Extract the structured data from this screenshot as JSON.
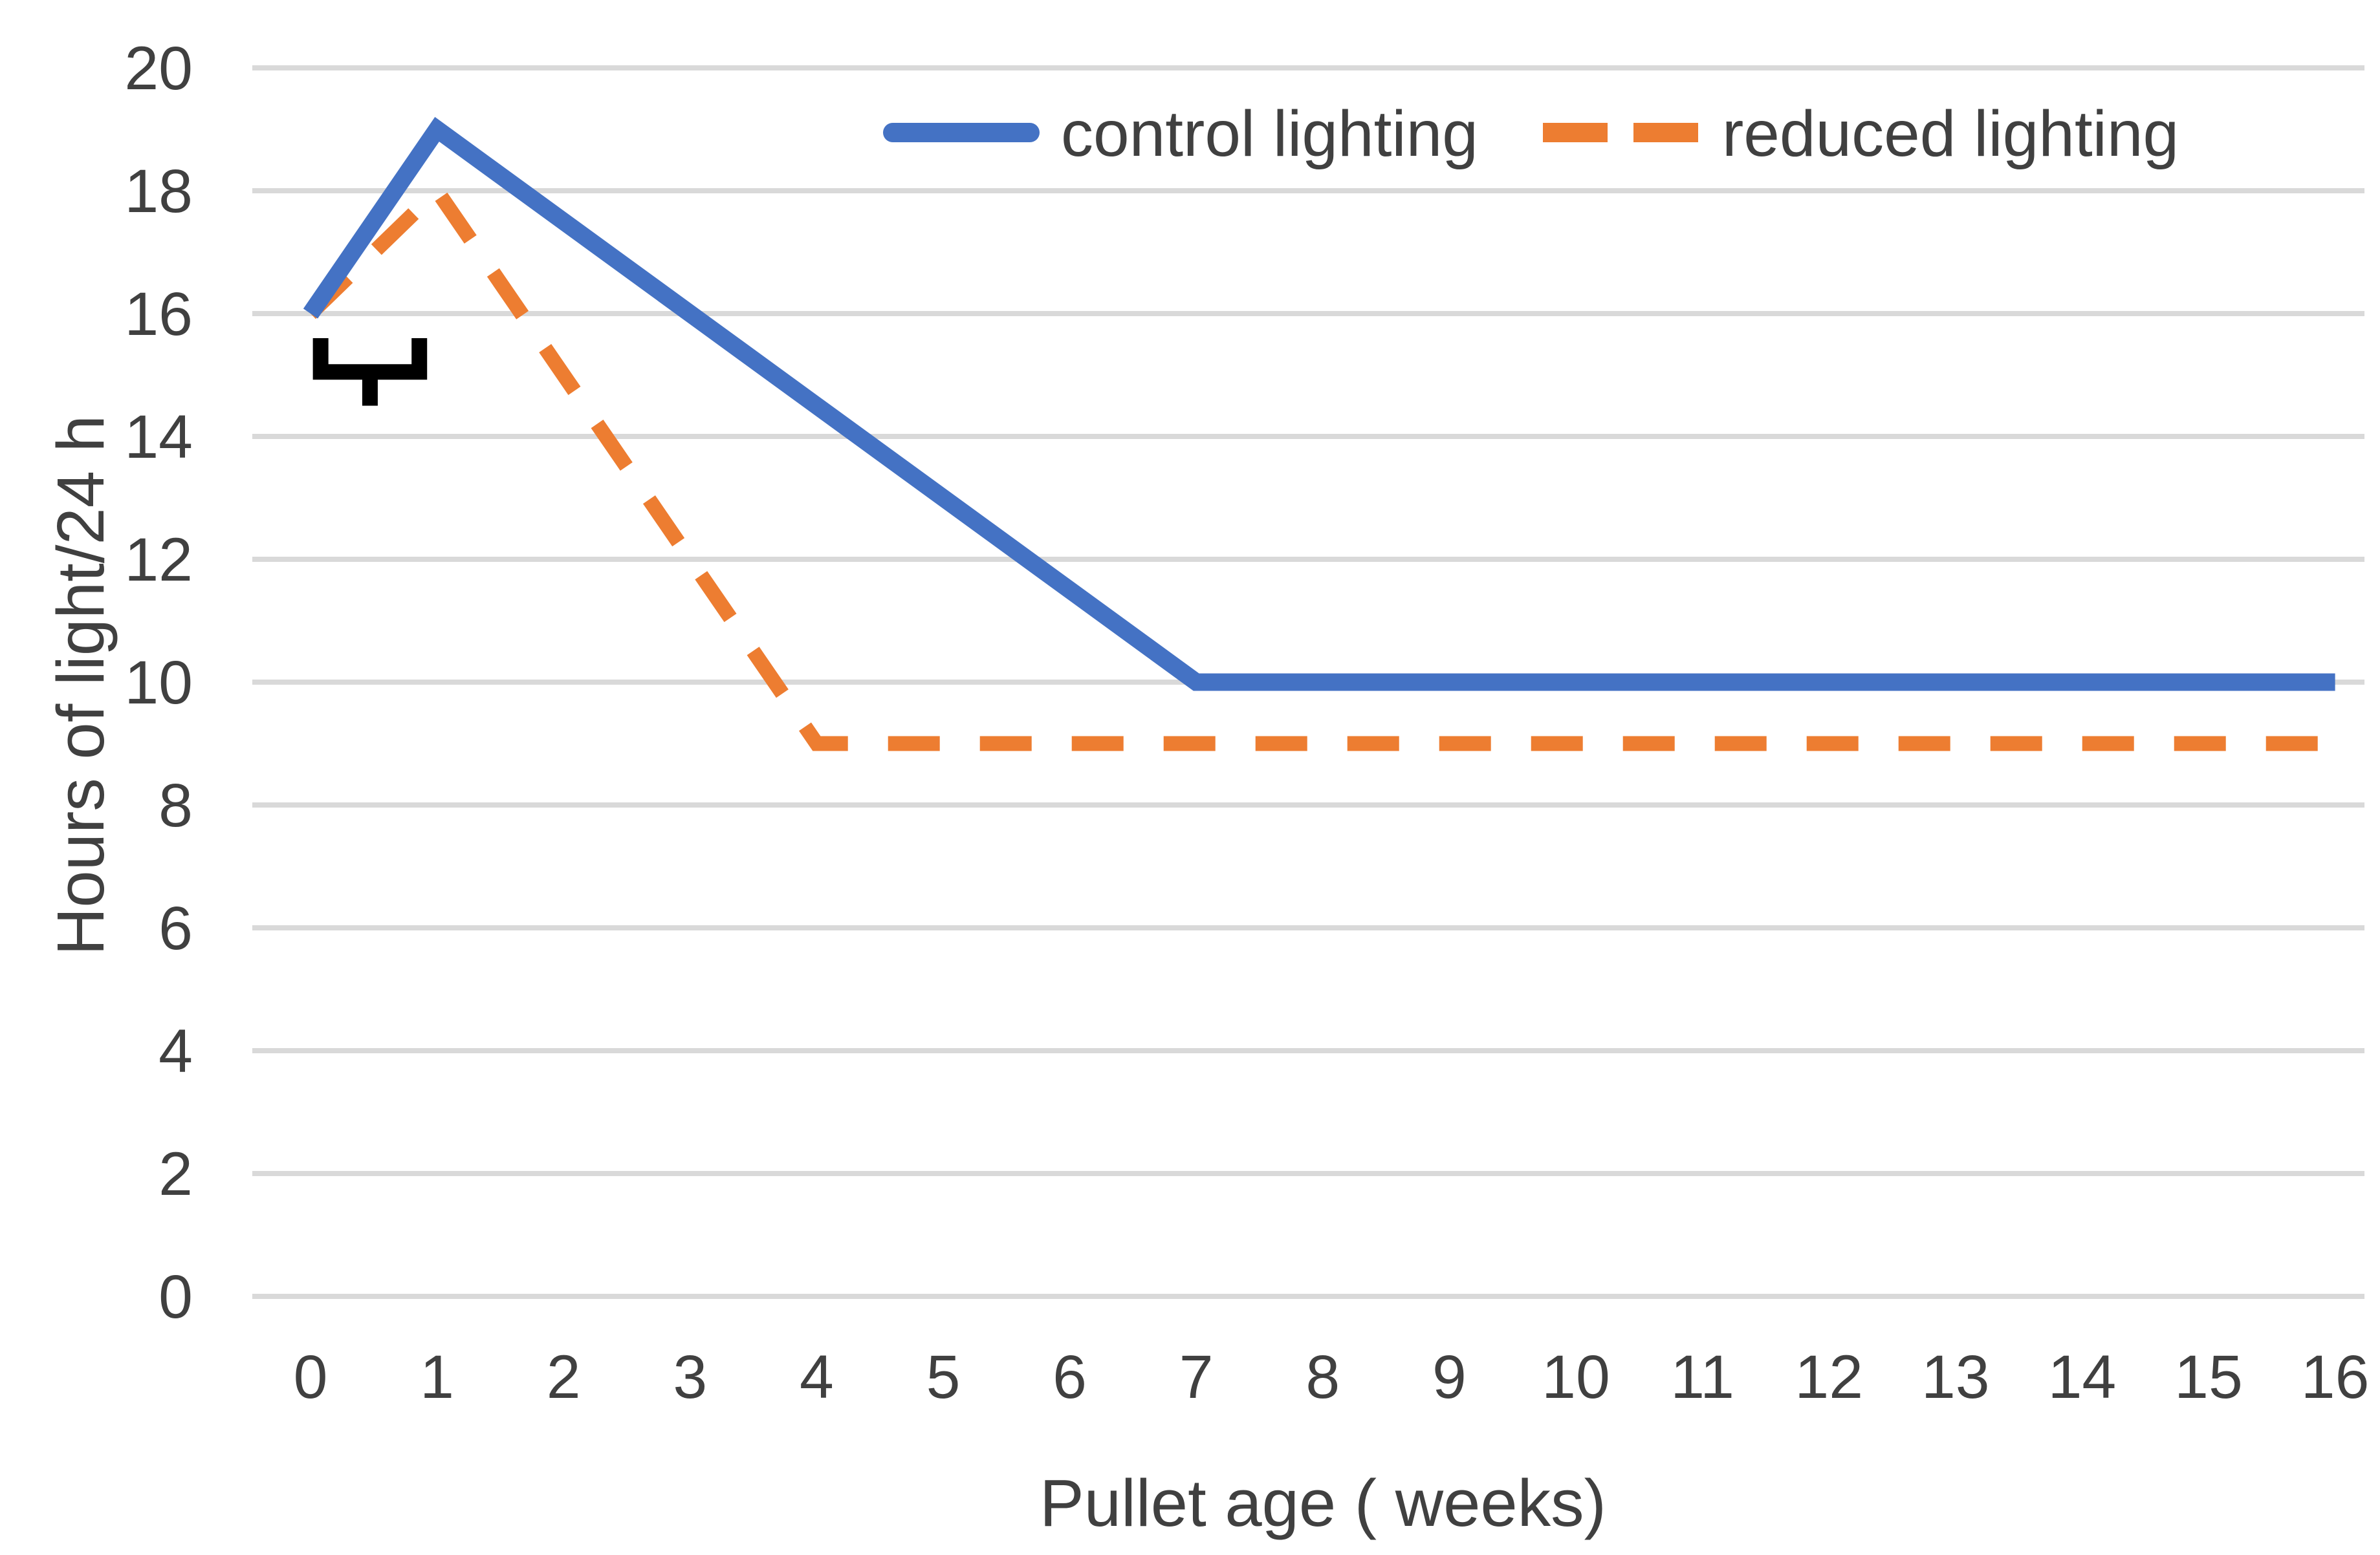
{
  "chart_data": {
    "type": "line",
    "title": "",
    "xlabel": "Pullet age ( weeks)",
    "ylabel": "Hours of light/24 h",
    "xlim": [
      0,
      16
    ],
    "ylim": [
      0,
      20
    ],
    "x_ticks": [
      0,
      1,
      2,
      3,
      4,
      5,
      6,
      7,
      8,
      9,
      10,
      11,
      12,
      13,
      14,
      15,
      16
    ],
    "y_ticks": [
      0,
      2,
      4,
      6,
      8,
      10,
      12,
      14,
      16,
      18,
      20
    ],
    "grid": "horizontal-only",
    "grid_color": "#D9D9D9",
    "axis_text_color": "#404040",
    "background_color": "#FFFFFF",
    "legend_position": "top-center",
    "series": [
      {
        "name": "control lighting",
        "color": "#4472C4",
        "line_style": "solid",
        "points": [
          [
            0,
            16
          ],
          [
            1,
            19
          ],
          [
            7,
            10
          ],
          [
            16,
            10
          ]
        ],
        "weekly_values": [
          16,
          19,
          17.5,
          16,
          14.5,
          13,
          11.5,
          10,
          10,
          10,
          10,
          10,
          10,
          10,
          10,
          10,
          10
        ]
      },
      {
        "name": "reduced lighting",
        "color": "#ED7D31",
        "line_style": "dashed",
        "points": [
          [
            0,
            16
          ],
          [
            1,
            18
          ],
          [
            4,
            9
          ],
          [
            16,
            9
          ]
        ],
        "weekly_values": [
          16,
          18,
          15,
          12,
          9,
          9,
          9,
          9,
          9,
          9,
          9,
          9,
          9,
          9,
          9,
          9,
          9
        ]
      }
    ],
    "annotation": {
      "type": "square-bracket-opening-up",
      "description": "black bracket marking the interval from week 0 to week 1",
      "color": "#000000",
      "week_from": 0.08,
      "week_to": 0.86,
      "y_top": 15.6,
      "y_bar": 15.05,
      "y_tail": 14.5
    }
  }
}
